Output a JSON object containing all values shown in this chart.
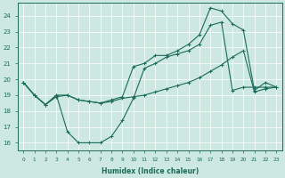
{
  "xlabel": "Humidex (Indice chaleur)",
  "bg_color": "#cce8e0",
  "line_color": "#1a6b5a",
  "grid_color": "#ffffff",
  "xlim": [
    -0.5,
    23.5
  ],
  "ylim": [
    15.5,
    24.8
  ],
  "yticks": [
    16,
    17,
    18,
    19,
    20,
    21,
    22,
    23,
    24
  ],
  "xticks": [
    0,
    1,
    2,
    3,
    4,
    5,
    6,
    7,
    8,
    9,
    10,
    11,
    12,
    13,
    14,
    15,
    16,
    17,
    18,
    19,
    20,
    21,
    22,
    23
  ],
  "line1_x": [
    0,
    1,
    2,
    3,
    4,
    5,
    6,
    7,
    8,
    9,
    10,
    11,
    12,
    13,
    14,
    15,
    16,
    17,
    18,
    19,
    20,
    21,
    22,
    23
  ],
  "line1_y": [
    19.8,
    19.0,
    18.4,
    19.0,
    16.7,
    16.0,
    16.0,
    16.0,
    16.4,
    17.4,
    18.8,
    20.7,
    21.0,
    21.4,
    21.6,
    21.8,
    22.2,
    23.4,
    23.6,
    19.3,
    19.5,
    19.5,
    19.5,
    19.5
  ],
  "line2_x": [
    0,
    1,
    2,
    3,
    4,
    5,
    6,
    7,
    8,
    9,
    10,
    11,
    12,
    13,
    14,
    15,
    16,
    17,
    18,
    19,
    20,
    21,
    22,
    23
  ],
  "line2_y": [
    19.8,
    19.0,
    18.4,
    18.9,
    19.0,
    18.7,
    18.6,
    18.5,
    18.6,
    18.8,
    18.9,
    19.0,
    19.2,
    19.4,
    19.6,
    19.8,
    20.1,
    20.5,
    20.9,
    21.4,
    21.8,
    19.2,
    19.4,
    19.5
  ],
  "line3_x": [
    0,
    1,
    2,
    3,
    4,
    5,
    6,
    7,
    8,
    9,
    10,
    11,
    12,
    13,
    14,
    15,
    16,
    17,
    18,
    19,
    20,
    21,
    22,
    23
  ],
  "line3_y": [
    19.8,
    19.0,
    18.4,
    19.0,
    19.0,
    18.7,
    18.6,
    18.5,
    18.7,
    18.9,
    20.8,
    21.0,
    21.5,
    21.5,
    21.8,
    22.2,
    22.8,
    24.5,
    24.3,
    23.5,
    23.1,
    19.3,
    19.8,
    19.5
  ]
}
